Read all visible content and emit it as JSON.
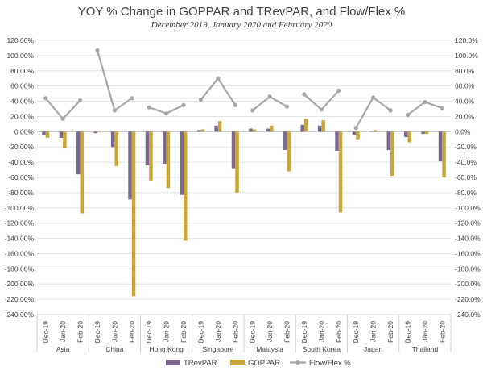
{
  "chart_data": {
    "type": "bar",
    "title": "YOY % Change in GOPPAR and TRevPAR, and Flow/Flex %",
    "subtitle": "December 2019, January 2020 and February 2020",
    "ylim": [
      -240,
      120
    ],
    "yticks": [
      "120.00%",
      "100.00%",
      "80.00%",
      "60.00%",
      "40.00%",
      "20.00%",
      "0.00%",
      "-20.00%",
      "-40.00%",
      "-60.00%",
      "-80.00%",
      "-100.00%",
      "-120.00%",
      "-140.00%",
      "-160.00%",
      "-180.00%",
      "-200.00%",
      "-220.00%",
      "-240.00%"
    ],
    "y2ticks": [
      "120.0%",
      "100.0%",
      "80.0%",
      "60.0%",
      "40.0%",
      "20.0%",
      "0.0%",
      "-20.0%",
      "-40.0%",
      "-60.0%",
      "-80.0%",
      "-100.0%",
      "-120.0%",
      "-140.0%",
      "-160.0%",
      "-180.0%",
      "-200.0%",
      "-220.0%",
      "-240.0%"
    ],
    "grid": true,
    "legend_position": "bottom-right",
    "groups": [
      "Asia",
      "China",
      "Hong Kong",
      "Singapore",
      "Malaysia",
      "South Korea",
      "Japan",
      "Thailand"
    ],
    "months": [
      "Dec-19",
      "Jan-20",
      "Feb-20"
    ],
    "series": [
      {
        "name": "TRevPAR",
        "type": "bar",
        "color": "#7a6891",
        "values": [
          [
            -5,
            -8,
            -56
          ],
          [
            -2,
            -20,
            -89
          ],
          [
            -44,
            -42,
            -83
          ],
          [
            2,
            8,
            -48
          ],
          [
            4,
            4,
            -24
          ],
          [
            9,
            8,
            -25
          ],
          [
            -4,
            1,
            -24
          ],
          [
            -7,
            -3,
            -39
          ]
        ]
      },
      {
        "name": "GOPPAR",
        "type": "bar",
        "color": "#c9a63a",
        "values": [
          [
            -8,
            -22,
            -107
          ],
          [
            1,
            -45,
            -216
          ],
          [
            -64,
            -74,
            -143
          ],
          [
            3,
            14,
            -80
          ],
          [
            3,
            8,
            -52
          ],
          [
            17,
            15,
            -106
          ],
          [
            -10,
            2,
            -58
          ],
          [
            -14,
            -3,
            -60
          ]
        ]
      },
      {
        "name": "Flow/Flex %",
        "type": "line",
        "color": "#a6a6a6",
        "values": [
          [
            44,
            17,
            41
          ],
          [
            107,
            28,
            44
          ],
          [
            32,
            24,
            35
          ],
          [
            42,
            70,
            35
          ],
          [
            28,
            46,
            33
          ],
          [
            49,
            29,
            54
          ],
          [
            5,
            45,
            28
          ],
          [
            22,
            39,
            31
          ]
        ]
      }
    ]
  }
}
